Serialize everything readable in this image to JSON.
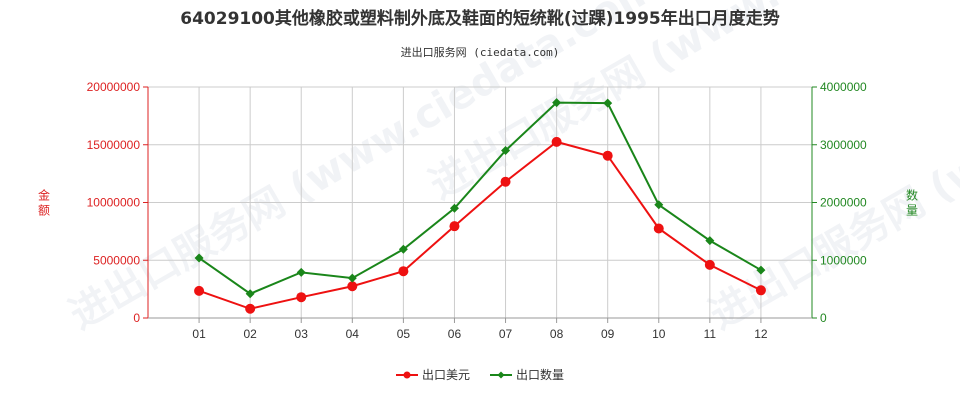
{
  "chart_data": {
    "type": "line",
    "title": "64029100其他橡胶或塑料制外底及鞋面的短统靴(过踝)1995年出口月度走势",
    "subtitle": "进出口服务网 (ciedata.com)",
    "watermark": "进出口服务网 (www.ciedata.com)",
    "categories": [
      "01",
      "02",
      "03",
      "04",
      "05",
      "06",
      "07",
      "08",
      "09",
      "10",
      "11",
      "12"
    ],
    "y_left": {
      "label": "金额",
      "min": 0,
      "max": 20000000,
      "ticks": [
        "0",
        "5000000",
        "10000000",
        "15000000",
        "20000000"
      ],
      "color": "#dd2222"
    },
    "y_right": {
      "label": "数量",
      "min": 0,
      "max": 4000000,
      "ticks": [
        "0",
        "1000000",
        "2000000",
        "3000000",
        "4000000"
      ],
      "color": "#228822"
    },
    "grid": true,
    "legend_position": "bottom-center",
    "series": [
      {
        "name": "出口美元",
        "axis": "left",
        "color": "#ee1111",
        "marker": "circle",
        "values": [
          2350000,
          800000,
          1800000,
          2750000,
          4050000,
          7950000,
          11800000,
          15250000,
          14050000,
          7750000,
          4600000,
          2400000
        ]
      },
      {
        "name": "出口数量",
        "axis": "right",
        "color": "#1a861a",
        "marker": "diamond",
        "values": [
          1040000,
          420000,
          790000,
          690000,
          1190000,
          1900000,
          2900000,
          3730000,
          3720000,
          1960000,
          1340000,
          830000
        ]
      }
    ]
  }
}
